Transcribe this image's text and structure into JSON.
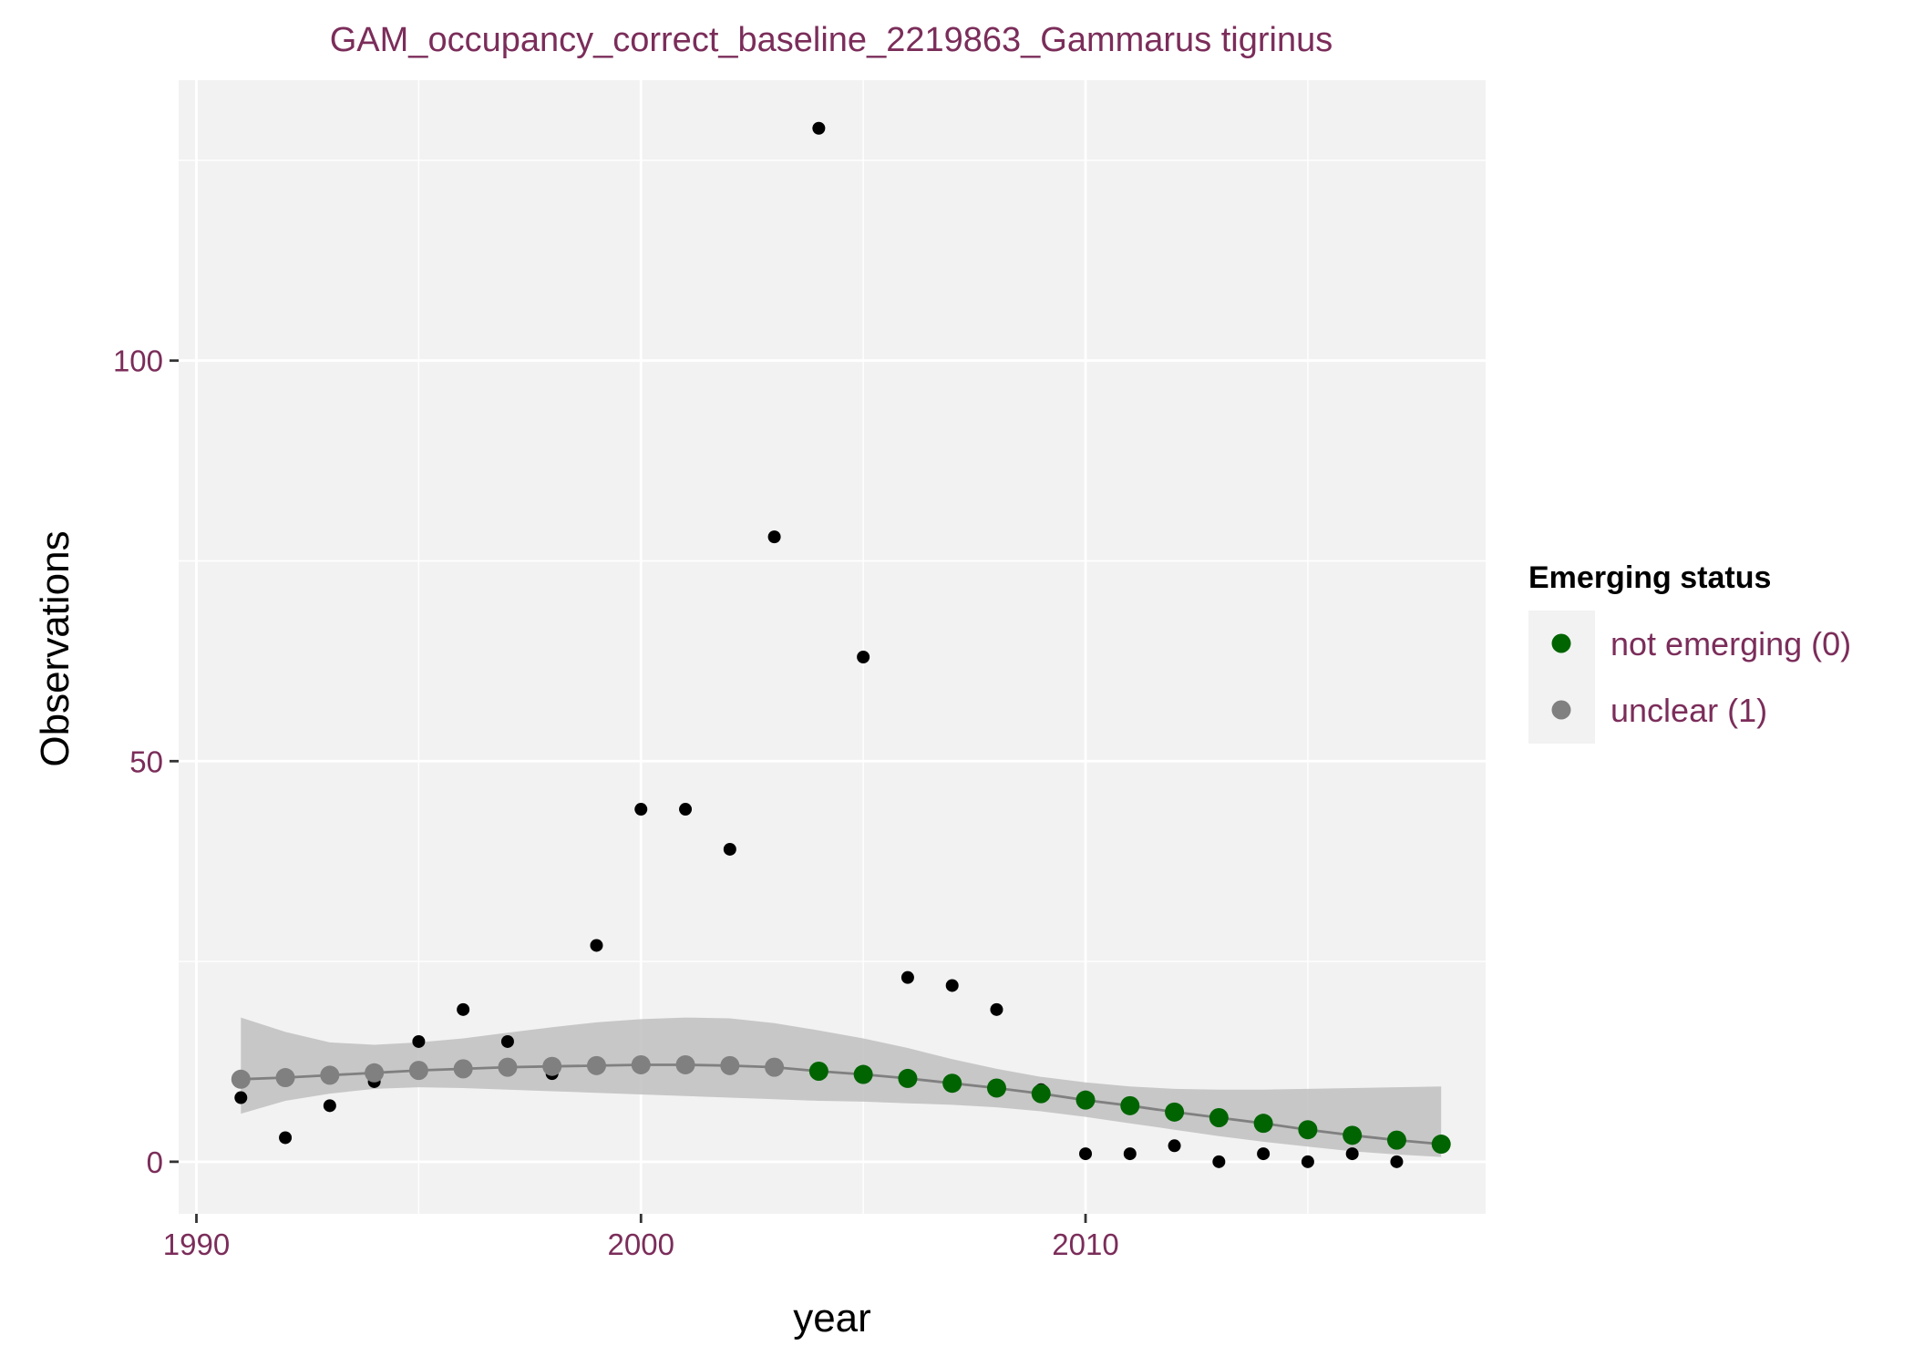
{
  "chart_data": {
    "type": "scatter",
    "title": "GAM_occupancy_correct_baseline_2219863_Gammarus tigrinus",
    "xlabel": "year",
    "ylabel": "Observations",
    "xlim": [
      1989.6,
      2019.0
    ],
    "ylim": [
      -6.5,
      135
    ],
    "x_ticks": [
      1990,
      2000,
      2010
    ],
    "x_tick_labels": [
      "1990",
      "2000",
      "2010"
    ],
    "y_ticks": [
      0,
      50,
      100
    ],
    "y_tick_labels": [
      "0",
      "50",
      "100"
    ],
    "grid": true,
    "panel_background": "#f2f2f2",
    "observations": {
      "color": "#000000",
      "x": [
        1991,
        1992,
        1993,
        1994,
        1995,
        1996,
        1997,
        1998,
        1999,
        2000,
        2001,
        2002,
        2003,
        2004,
        2005,
        2006,
        2007,
        2008,
        2009,
        2010,
        2011,
        2012,
        2013,
        2014,
        2015,
        2016,
        2017,
        2018
      ],
      "y": [
        8,
        3,
        7,
        10,
        15,
        19,
        15,
        11,
        27,
        44,
        44,
        39,
        78,
        129,
        63,
        23,
        22,
        19,
        9,
        1,
        1,
        2,
        0,
        1,
        0,
        1,
        0,
        2
      ]
    },
    "gam_fit": {
      "line_color": "#808080",
      "ribbon_color": "#bfbfbf",
      "x": [
        1991,
        1992,
        1993,
        1994,
        1995,
        1996,
        1997,
        1998,
        1999,
        2000,
        2001,
        2002,
        2003,
        2004,
        2005,
        2006,
        2007,
        2008,
        2009,
        2010,
        2011,
        2012,
        2013,
        2014,
        2015,
        2016,
        2017,
        2018
      ],
      "fit": [
        10.3,
        10.5,
        10.8,
        11.1,
        11.4,
        11.6,
        11.8,
        11.9,
        12.0,
        12.1,
        12.1,
        12.0,
        11.8,
        11.3,
        10.9,
        10.4,
        9.8,
        9.2,
        8.5,
        7.7,
        7.0,
        6.2,
        5.5,
        4.8,
        4.0,
        3.3,
        2.7,
        2.2
      ],
      "lower": [
        6.0,
        7.6,
        8.5,
        9.1,
        9.3,
        9.2,
        9.0,
        8.8,
        8.6,
        8.4,
        8.2,
        8.0,
        7.8,
        7.6,
        7.5,
        7.3,
        7.1,
        6.8,
        6.3,
        5.6,
        4.8,
        4.0,
        3.2,
        2.5,
        1.9,
        1.3,
        0.9,
        0.6
      ],
      "upper": [
        18.0,
        16.2,
        14.9,
        14.6,
        14.9,
        15.4,
        16.1,
        16.8,
        17.4,
        17.8,
        18.0,
        17.9,
        17.3,
        16.4,
        15.4,
        14.2,
        12.8,
        11.6,
        10.6,
        9.9,
        9.4,
        9.1,
        9.0,
        9.0,
        9.1,
        9.2,
        9.3,
        9.4
      ]
    },
    "series": [
      {
        "name": "not emerging (0)",
        "color": "#006400",
        "x": [
          2004,
          2005,
          2006,
          2007,
          2008,
          2009,
          2010,
          2011,
          2012,
          2013,
          2014,
          2015,
          2016,
          2017,
          2018
        ],
        "y": [
          11.3,
          10.9,
          10.4,
          9.8,
          9.2,
          8.5,
          7.7,
          7.0,
          6.2,
          5.5,
          4.8,
          4.0,
          3.3,
          2.7,
          2.2
        ]
      },
      {
        "name": "unclear (1)",
        "color": "#808080",
        "x": [
          1991,
          1992,
          1993,
          1994,
          1995,
          1996,
          1997,
          1998,
          1999,
          2000,
          2001,
          2002,
          2003
        ],
        "y": [
          10.3,
          10.5,
          10.8,
          11.1,
          11.4,
          11.6,
          11.8,
          11.9,
          12.0,
          12.1,
          12.1,
          12.0,
          11.8
        ]
      }
    ],
    "legend": {
      "title": "Emerging status",
      "position": "right",
      "items": [
        {
          "label": "not emerging (0)",
          "color": "#006400"
        },
        {
          "label": "unclear (1)",
          "color": "#808080"
        }
      ]
    }
  }
}
